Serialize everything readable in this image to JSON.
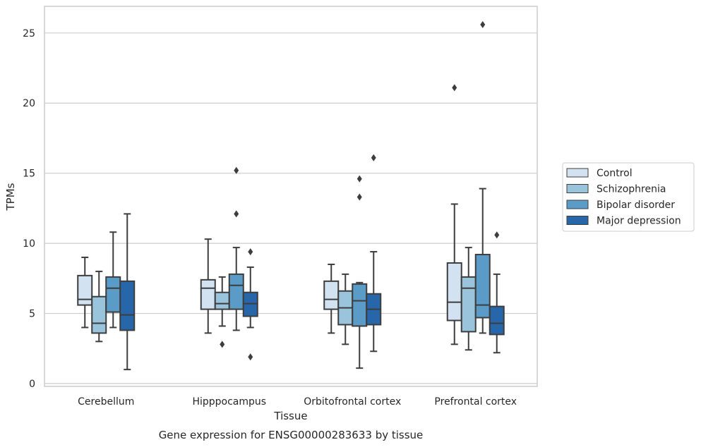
{
  "chart_data": {
    "type": "box",
    "xlabel": "Tissue",
    "ylabel": "TPMs",
    "caption": "Gene expression for ENSG00000283633 by tissue",
    "ylim": [
      -0.2,
      26.9
    ],
    "yticks": [
      0,
      5,
      10,
      15,
      20,
      25
    ],
    "grid": "horizontal",
    "legend_position": "right",
    "categories": [
      "Cerebellum",
      "Hipppocampus",
      "Orbitofrontal cortex",
      "Prefrontal cortex"
    ],
    "series": [
      {
        "name": "Control",
        "color": "#d2e2f1",
        "boxes": [
          {
            "whislo": 4.0,
            "q1": 5.6,
            "med": 6.0,
            "q3": 7.7,
            "whishi": 9.0,
            "fliers": []
          },
          {
            "whislo": 3.6,
            "q1": 5.3,
            "med": 6.8,
            "q3": 7.4,
            "whishi": 10.3,
            "fliers": []
          },
          {
            "whislo": 3.6,
            "q1": 5.3,
            "med": 6.0,
            "q3": 7.3,
            "whishi": 8.5,
            "fliers": []
          },
          {
            "whislo": 2.8,
            "q1": 4.5,
            "med": 5.8,
            "q3": 8.6,
            "whishi": 12.8,
            "fliers": [
              21.1
            ]
          }
        ]
      },
      {
        "name": "Schizophrenia",
        "color": "#9ac3dc",
        "boxes": [
          {
            "whislo": 3.0,
            "q1": 3.6,
            "med": 4.3,
            "q3": 6.2,
            "whishi": 8.0,
            "fliers": []
          },
          {
            "whislo": 4.1,
            "q1": 5.3,
            "med": 5.7,
            "q3": 6.5,
            "whishi": 7.6,
            "fliers": [
              2.8
            ]
          },
          {
            "whislo": 2.8,
            "q1": 4.2,
            "med": 5.4,
            "q3": 6.6,
            "whishi": 7.8,
            "fliers": []
          },
          {
            "whislo": 2.4,
            "q1": 3.7,
            "med": 6.8,
            "q3": 7.6,
            "whishi": 9.7,
            "fliers": []
          }
        ]
      },
      {
        "name": "Bipolar disorder",
        "color": "#5b9bc7",
        "boxes": [
          {
            "whislo": 4.0,
            "q1": 5.1,
            "med": 6.8,
            "q3": 7.6,
            "whishi": 10.8,
            "fliers": []
          },
          {
            "whislo": 3.8,
            "q1": 5.3,
            "med": 7.0,
            "q3": 7.8,
            "whishi": 9.7,
            "fliers": [
              12.1,
              15.2
            ]
          },
          {
            "whislo": 1.1,
            "q1": 4.1,
            "med": 5.9,
            "q3": 7.1,
            "whishi": 7.2,
            "fliers": [
              13.3,
              14.6
            ]
          },
          {
            "whislo": 3.6,
            "q1": 4.7,
            "med": 5.6,
            "q3": 9.2,
            "whishi": 13.9,
            "fliers": [
              25.6
            ]
          }
        ]
      },
      {
        "name": "Major depression",
        "color": "#2766a9",
        "boxes": [
          {
            "whislo": 1.0,
            "q1": 3.8,
            "med": 4.9,
            "q3": 7.3,
            "whishi": 12.1,
            "fliers": []
          },
          {
            "whislo": 4.0,
            "q1": 4.8,
            "med": 5.7,
            "q3": 6.5,
            "whishi": 8.3,
            "fliers": [
              1.9,
              9.4
            ]
          },
          {
            "whislo": 2.3,
            "q1": 4.2,
            "med": 5.3,
            "q3": 6.4,
            "whishi": 9.4,
            "fliers": [
              16.1
            ]
          },
          {
            "whislo": 2.2,
            "q1": 3.5,
            "med": 4.3,
            "q3": 5.5,
            "whishi": 7.8,
            "fliers": [
              10.6
            ]
          }
        ]
      }
    ]
  }
}
